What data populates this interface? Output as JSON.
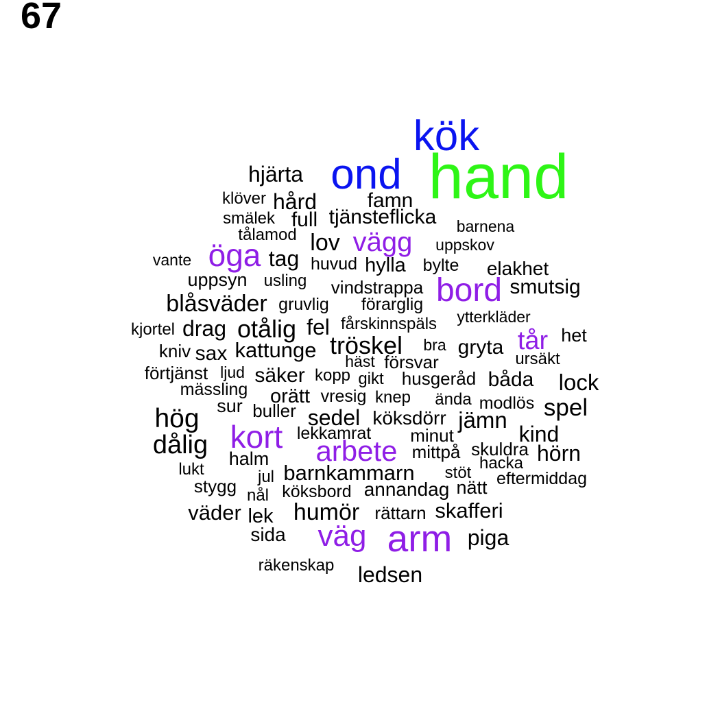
{
  "page_number": "67",
  "colors": {
    "black": "#000000",
    "purple": "#8f1ee6",
    "blue": "#0a14f0",
    "green": "#2ef516"
  },
  "words": [
    {
      "text": "kök",
      "color": "blue"
    },
    {
      "text": "hand",
      "color": "green"
    },
    {
      "text": "ond",
      "color": "blue"
    },
    {
      "text": "hjärta",
      "color": "black"
    },
    {
      "text": "klöver",
      "color": "black"
    },
    {
      "text": "hård",
      "color": "black"
    },
    {
      "text": "famn",
      "color": "black"
    },
    {
      "text": "smälek",
      "color": "black"
    },
    {
      "text": "full",
      "color": "black"
    },
    {
      "text": "tjänsteflicka",
      "color": "black"
    },
    {
      "text": "barnena",
      "color": "black"
    },
    {
      "text": "tålamod",
      "color": "black"
    },
    {
      "text": "lov",
      "color": "black"
    },
    {
      "text": "vägg",
      "color": "purple"
    },
    {
      "text": "uppskov",
      "color": "black"
    },
    {
      "text": "öga",
      "color": "purple"
    },
    {
      "text": "vante",
      "color": "black"
    },
    {
      "text": "tag",
      "color": "black"
    },
    {
      "text": "huvud",
      "color": "black"
    },
    {
      "text": "hylla",
      "color": "black"
    },
    {
      "text": "bylte",
      "color": "black"
    },
    {
      "text": "elakhet",
      "color": "black"
    },
    {
      "text": "uppsyn",
      "color": "black"
    },
    {
      "text": "usling",
      "color": "black"
    },
    {
      "text": "vindstrappa",
      "color": "black"
    },
    {
      "text": "bord",
      "color": "purple"
    },
    {
      "text": "smutsig",
      "color": "black"
    },
    {
      "text": "blåsväder",
      "color": "black"
    },
    {
      "text": "gruvlig",
      "color": "black"
    },
    {
      "text": "förarglig",
      "color": "black"
    },
    {
      "text": "ytterkläder",
      "color": "black"
    },
    {
      "text": "kjortel",
      "color": "black"
    },
    {
      "text": "drag",
      "color": "black"
    },
    {
      "text": "otålig",
      "color": "black"
    },
    {
      "text": "fel",
      "color": "black"
    },
    {
      "text": "fårskinnspäls",
      "color": "black"
    },
    {
      "text": "tår",
      "color": "purple"
    },
    {
      "text": "het",
      "color": "black"
    },
    {
      "text": "kniv",
      "color": "black"
    },
    {
      "text": "sax",
      "color": "black"
    },
    {
      "text": "kattunge",
      "color": "black"
    },
    {
      "text": "tröskel",
      "color": "black"
    },
    {
      "text": "bra",
      "color": "black"
    },
    {
      "text": "gryta",
      "color": "black"
    },
    {
      "text": "häst",
      "color": "black"
    },
    {
      "text": "försvar",
      "color": "black"
    },
    {
      "text": "ursäkt",
      "color": "black"
    },
    {
      "text": "förtjänst",
      "color": "black"
    },
    {
      "text": "ljud",
      "color": "black"
    },
    {
      "text": "säker",
      "color": "black"
    },
    {
      "text": "kopp",
      "color": "black"
    },
    {
      "text": "gikt",
      "color": "black"
    },
    {
      "text": "husgeråd",
      "color": "black"
    },
    {
      "text": "båda",
      "color": "black"
    },
    {
      "text": "lock",
      "color": "black"
    },
    {
      "text": "mässling",
      "color": "black"
    },
    {
      "text": "orätt",
      "color": "black"
    },
    {
      "text": "vresig",
      "color": "black"
    },
    {
      "text": "knep",
      "color": "black"
    },
    {
      "text": "ända",
      "color": "black"
    },
    {
      "text": "modlös",
      "color": "black"
    },
    {
      "text": "sur",
      "color": "black"
    },
    {
      "text": "buller",
      "color": "black"
    },
    {
      "text": "spel",
      "color": "black"
    },
    {
      "text": "hög",
      "color": "black"
    },
    {
      "text": "sedel",
      "color": "black"
    },
    {
      "text": "köksdörr",
      "color": "black"
    },
    {
      "text": "jämn",
      "color": "black"
    },
    {
      "text": "kort",
      "color": "purple"
    },
    {
      "text": "lekkamrat",
      "color": "black"
    },
    {
      "text": "minut",
      "color": "black"
    },
    {
      "text": "kind",
      "color": "black"
    },
    {
      "text": "dålig",
      "color": "black"
    },
    {
      "text": "arbete",
      "color": "purple"
    },
    {
      "text": "mittpå",
      "color": "black"
    },
    {
      "text": "skuldra",
      "color": "black"
    },
    {
      "text": "hörn",
      "color": "black"
    },
    {
      "text": "halm",
      "color": "black"
    },
    {
      "text": "hacka",
      "color": "black"
    },
    {
      "text": "lukt",
      "color": "black"
    },
    {
      "text": "jul",
      "color": "black"
    },
    {
      "text": "barnkammarn",
      "color": "black"
    },
    {
      "text": "stöt",
      "color": "black"
    },
    {
      "text": "eftermiddag",
      "color": "black"
    },
    {
      "text": "stygg",
      "color": "black"
    },
    {
      "text": "nål",
      "color": "black"
    },
    {
      "text": "köksbord",
      "color": "black"
    },
    {
      "text": "annandag",
      "color": "black"
    },
    {
      "text": "nätt",
      "color": "black"
    },
    {
      "text": "väder",
      "color": "black"
    },
    {
      "text": "lek",
      "color": "black"
    },
    {
      "text": "humör",
      "color": "black"
    },
    {
      "text": "rättarn",
      "color": "black"
    },
    {
      "text": "skafferi",
      "color": "black"
    },
    {
      "text": "sida",
      "color": "black"
    },
    {
      "text": "väg",
      "color": "purple"
    },
    {
      "text": "arm",
      "color": "purple"
    },
    {
      "text": "piga",
      "color": "black"
    },
    {
      "text": "räkenskap",
      "color": "black"
    },
    {
      "text": "ledsen",
      "color": "black"
    }
  ]
}
